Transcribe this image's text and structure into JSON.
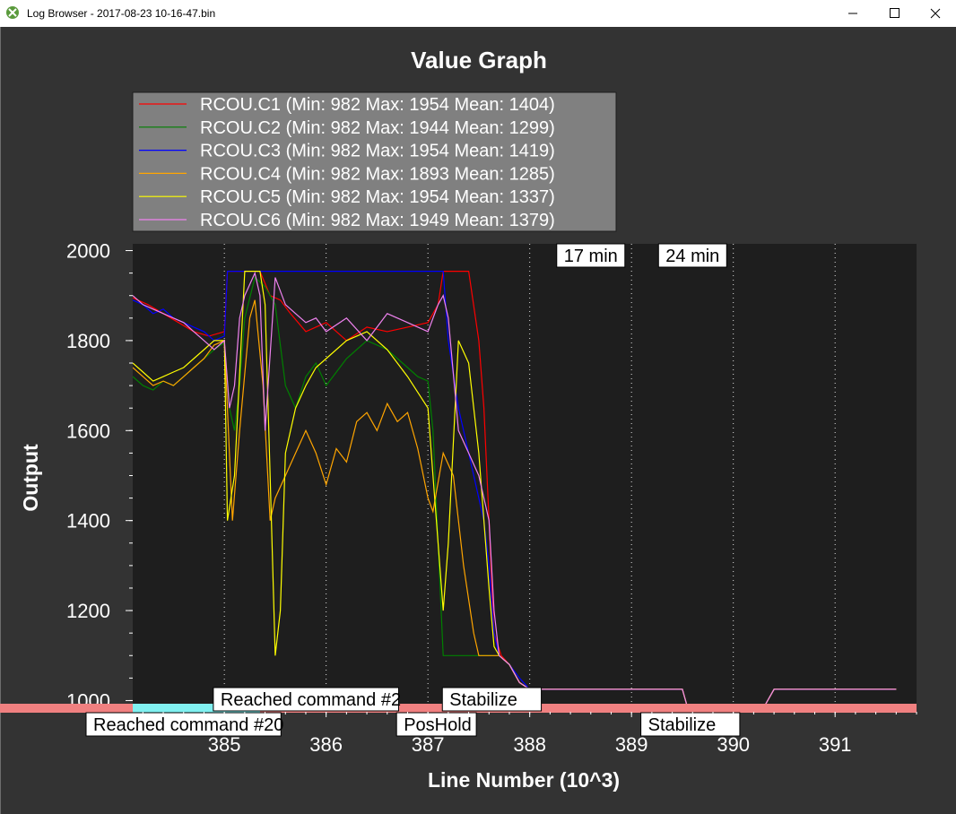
{
  "window": {
    "title": "Log Browser - 2017-08-23 10-16-47.bin",
    "icon": "app-logo-icon",
    "buttons": [
      "minimize-icon",
      "maximize-icon",
      "close-icon"
    ]
  },
  "colors": {
    "client_bg": "#333333",
    "plot_bg": "#1e1e1e",
    "legend_bg": "#808080",
    "mode_bar": "#f08080",
    "mode_highlight": "#80f0f0"
  },
  "chart_data": {
    "type": "line",
    "title": "Value Graph",
    "xlabel": "Line Number (10^3)",
    "ylabel": "Output",
    "xlim": [
      384.1,
      391.8
    ],
    "ylim": [
      975,
      2015
    ],
    "xticks": [
      385,
      386,
      387,
      388,
      389,
      390,
      391
    ],
    "yticks": [
      1000,
      1200,
      1400,
      1600,
      1800,
      2000
    ],
    "grid": "vertical dotted",
    "legend_position": "top-left",
    "series": [
      {
        "name": "RCOU.C1 (Min: 982 Max: 1954 Mean: 1404)",
        "color": "#ff0000",
        "x": [
          384.1,
          384.25,
          384.4,
          384.55,
          384.7,
          384.85,
          385.0,
          385.03,
          385.2,
          385.35,
          385.45,
          385.55,
          385.65,
          385.8,
          386.0,
          386.2,
          386.4,
          386.6,
          386.8,
          387.0,
          387.1,
          387.15,
          387.2,
          387.4,
          387.5,
          387.55,
          387.6,
          387.65,
          387.72,
          387.8,
          387.85,
          387.9,
          388.0,
          389.0,
          389.5,
          389.55,
          390.3,
          390.4,
          391.6
        ],
        "y": [
          1895,
          1880,
          1860,
          1840,
          1820,
          1810,
          1820,
          1954,
          1954,
          1954,
          1900,
          1890,
          1860,
          1820,
          1840,
          1800,
          1830,
          1820,
          1830,
          1840,
          1880,
          1954,
          1954,
          1954,
          1800,
          1650,
          1400,
          1150,
          1100,
          1080,
          1060,
          1040,
          1025,
          1025,
          1025,
          985,
          985,
          1025,
          1025
        ]
      },
      {
        "name": "RCOU.C2 (Min: 982 Max: 1944 Mean: 1299)",
        "color": "#008000",
        "x": [
          384.1,
          384.2,
          384.3,
          384.4,
          384.5,
          384.6,
          384.7,
          384.8,
          384.9,
          385.0,
          385.05,
          385.1,
          385.15,
          385.2,
          385.3,
          385.4,
          385.5,
          385.6,
          385.7,
          385.8,
          385.9,
          386.0,
          386.2,
          386.4,
          386.6,
          386.8,
          386.9,
          387.0,
          387.05,
          387.15,
          387.2,
          387.3,
          387.4,
          387.5,
          387.55,
          387.6,
          387.65,
          387.7,
          387.8,
          387.9,
          388.0,
          389.0,
          389.5,
          389.55,
          390.3,
          390.4,
          391.6
        ],
        "y": [
          1720,
          1700,
          1690,
          1710,
          1700,
          1720,
          1740,
          1760,
          1780,
          1795,
          1650,
          1600,
          1700,
          1850,
          1940,
          1920,
          1880,
          1700,
          1650,
          1720,
          1750,
          1700,
          1760,
          1800,
          1780,
          1740,
          1720,
          1710,
          1600,
          1100,
          1100,
          1100,
          1100,
          1100,
          1100,
          1100,
          1100,
          1100,
          1080,
          1040,
          1025,
          1025,
          1025,
          985,
          985,
          1025,
          1025
        ]
      },
      {
        "name": "RCOU.C3 (Min: 982 Max: 1954 Mean: 1419)",
        "color": "#0000ff",
        "x": [
          384.1,
          384.2,
          384.3,
          384.4,
          384.5,
          384.6,
          384.7,
          384.8,
          384.9,
          385.0,
          385.03,
          385.2,
          385.4,
          385.6,
          385.8,
          386.0,
          386.5,
          387.0,
          387.1,
          387.15,
          387.2,
          387.3,
          387.4,
          387.5,
          387.55,
          387.6,
          387.65,
          387.7,
          387.8,
          387.9,
          388.0,
          389.0,
          389.5,
          389.55,
          390.3,
          390.4,
          391.6
        ],
        "y": [
          1890,
          1880,
          1860,
          1870,
          1850,
          1840,
          1830,
          1820,
          1800,
          1810,
          1954,
          1954,
          1954,
          1954,
          1954,
          1954,
          1954,
          1954,
          1954,
          1954,
          1800,
          1650,
          1550,
          1450,
          1400,
          1300,
          1150,
          1100,
          1080,
          1050,
          1025,
          1025,
          1025,
          985,
          985,
          1025,
          1025
        ]
      },
      {
        "name": "RCOU.C4 (Min: 982 Max: 1893 Mean: 1285)",
        "color": "#ffa500",
        "x": [
          384.1,
          384.2,
          384.3,
          384.4,
          384.5,
          384.6,
          384.7,
          384.8,
          384.9,
          385.0,
          385.05,
          385.08,
          385.15,
          385.25,
          385.3,
          385.38,
          385.45,
          385.5,
          385.6,
          385.7,
          385.8,
          385.9,
          386.0,
          386.1,
          386.2,
          386.3,
          386.4,
          386.5,
          386.6,
          386.7,
          386.8,
          386.9,
          387.0,
          387.05,
          387.15,
          387.25,
          387.35,
          387.45,
          387.5,
          387.55,
          387.6,
          387.65,
          387.7,
          387.8,
          387.9,
          388.0,
          389.0,
          389.5,
          389.55,
          390.3,
          390.4,
          391.6
        ],
        "y": [
          1740,
          1720,
          1700,
          1710,
          1700,
          1720,
          1740,
          1760,
          1790,
          1800,
          1550,
          1400,
          1600,
          1850,
          1890,
          1700,
          1400,
          1450,
          1500,
          1550,
          1600,
          1550,
          1480,
          1560,
          1530,
          1620,
          1640,
          1600,
          1660,
          1620,
          1640,
          1560,
          1450,
          1420,
          1550,
          1500,
          1300,
          1150,
          1100,
          1100,
          1100,
          1100,
          1100,
          1080,
          1040,
          1025,
          1025,
          1025,
          985,
          985,
          1025,
          1025
        ]
      },
      {
        "name": "RCOU.C5 (Min: 982 Max: 1954 Mean: 1337)",
        "color": "#ffff00",
        "x": [
          384.1,
          384.2,
          384.3,
          384.4,
          384.5,
          384.6,
          384.7,
          384.8,
          384.9,
          385.0,
          385.03,
          385.1,
          385.2,
          385.3,
          385.35,
          385.4,
          385.45,
          385.5,
          385.55,
          385.6,
          385.7,
          385.8,
          385.9,
          386.0,
          386.2,
          386.4,
          386.6,
          386.8,
          387.0,
          387.05,
          387.15,
          387.2,
          387.3,
          387.4,
          387.5,
          387.55,
          387.6,
          387.65,
          387.7,
          387.8,
          387.9,
          388.0,
          389.0,
          389.5,
          389.55,
          390.3,
          390.4,
          391.6
        ],
        "y": [
          1750,
          1730,
          1710,
          1720,
          1730,
          1740,
          1760,
          1780,
          1800,
          1800,
          1400,
          1500,
          1954,
          1954,
          1954,
          1880,
          1500,
          1100,
          1200,
          1550,
          1650,
          1700,
          1740,
          1760,
          1800,
          1820,
          1780,
          1720,
          1650,
          1500,
          1200,
          1350,
          1800,
          1750,
          1550,
          1400,
          1250,
          1120,
          1100,
          1080,
          1040,
          1025,
          1025,
          1025,
          985,
          985,
          1025,
          1025
        ]
      },
      {
        "name": "RCOU.C6 (Min: 982 Max: 1949 Mean: 1379)",
        "color": "#ee82ee",
        "x": [
          384.1,
          384.2,
          384.3,
          384.4,
          384.5,
          384.6,
          384.7,
          384.8,
          384.9,
          385.0,
          385.05,
          385.1,
          385.15,
          385.2,
          385.3,
          385.35,
          385.4,
          385.5,
          385.6,
          385.7,
          385.8,
          385.9,
          386.0,
          386.2,
          386.4,
          386.6,
          386.8,
          387.0,
          387.1,
          387.15,
          387.2,
          387.3,
          387.4,
          387.5,
          387.55,
          387.6,
          387.65,
          387.7,
          387.8,
          387.9,
          388.0,
          389.0,
          389.5,
          389.55,
          390.3,
          390.4,
          391.6
        ],
        "y": [
          1900,
          1880,
          1870,
          1860,
          1850,
          1840,
          1820,
          1800,
          1780,
          1800,
          1650,
          1700,
          1850,
          1900,
          1950,
          1900,
          1600,
          1940,
          1880,
          1860,
          1840,
          1850,
          1820,
          1850,
          1800,
          1860,
          1840,
          1820,
          1880,
          1900,
          1850,
          1600,
          1550,
          1500,
          1450,
          1400,
          1200,
          1100,
          1080,
          1040,
          1025,
          1025,
          1025,
          985,
          985,
          1025,
          1025
        ]
      }
    ],
    "mode_events": [
      {
        "label": "Reached command #20",
        "x": 384.1,
        "row": "bottom"
      },
      {
        "label": "Reached command #2",
        "x": 385.35,
        "row": "top"
      },
      {
        "label": "PosHold",
        "x": 387.15,
        "row": "bottom"
      },
      {
        "label": "Stabilize",
        "x": 387.6,
        "row": "top"
      },
      {
        "label": "Stabilize",
        "x": 389.55,
        "row": "bottom"
      }
    ],
    "mode_highlight_range": [
      384.1,
      385.35
    ],
    "time_markers": [
      {
        "label": "17 min",
        "x": 388.6
      },
      {
        "label": "24 min",
        "x": 389.6
      }
    ]
  }
}
